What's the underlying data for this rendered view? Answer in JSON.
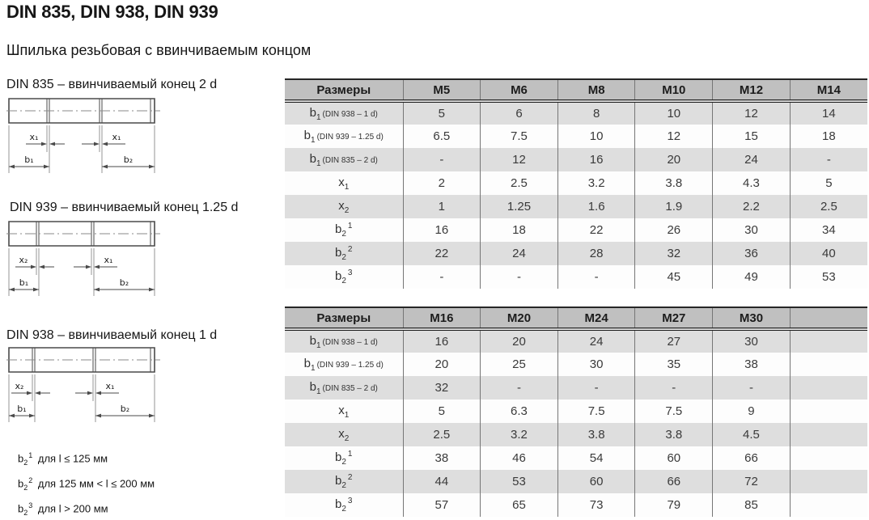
{
  "page": {
    "title": "DIN 835, DIN 938, DIN 939",
    "subtitle": "Шпилька резьбовая с ввинчиваемым концом"
  },
  "colors": {
    "table_header_bg": "#c0c0c0",
    "row_shaded_bg": "#dedede",
    "border_dark": "#262626",
    "grid_line": "#767676",
    "drawing_line": "#4a4a4a"
  },
  "drawings": [
    {
      "title": "DIN 835 – ввинчиваемый конец 2 d",
      "labels": {
        "x_left": "x₁",
        "x_right": "x₁",
        "b_left": "b₁",
        "b_right": "b₂"
      }
    },
    {
      "title": "DIN 939 – ввинчиваемый конец 1.25 d",
      "labels": {
        "x_left": "x₂",
        "x_right": "x₁",
        "b_left": "b₁",
        "b_right": "b₂"
      }
    },
    {
      "title": "DIN 938 – ввинчиваемый конец 1 d",
      "labels": {
        "x_left": "x₂",
        "x_right": "x₁",
        "b_left": "b₁",
        "b_right": "b₂"
      }
    }
  ],
  "footnotes": [
    {
      "base": "b",
      "sub": "2",
      "sup": "1",
      "text": "для l ≤ 125 мм"
    },
    {
      "base": "b",
      "sub": "2",
      "sup": "2",
      "text": "для 125 мм < l ≤ 200 мм"
    },
    {
      "base": "b",
      "sub": "2",
      "sup": "3",
      "text": "для l > 200 мм"
    }
  ],
  "tables": [
    {
      "header": [
        "Размеры",
        "M5",
        "M6",
        "M8",
        "M10",
        "M12",
        "M14"
      ],
      "rows": [
        {
          "label": {
            "base": "b",
            "sub": "1",
            "note": "(DIN 938 – 1 d)"
          },
          "values": [
            "5",
            "6",
            "8",
            "10",
            "12",
            "14"
          ]
        },
        {
          "label": {
            "base": "b",
            "sub": "1",
            "note": "(DIN 939 – 1.25 d)"
          },
          "values": [
            "6.5",
            "7.5",
            "10",
            "12",
            "15",
            "18"
          ]
        },
        {
          "label": {
            "base": "b",
            "sub": "1",
            "note": "(DIN 835 – 2 d)"
          },
          "values": [
            "-",
            "12",
            "16",
            "20",
            "24",
            "-"
          ]
        },
        {
          "label": {
            "base": "x",
            "sub": "1"
          },
          "values": [
            "2",
            "2.5",
            "3.2",
            "3.8",
            "4.3",
            "5"
          ]
        },
        {
          "label": {
            "base": "x",
            "sub": "2"
          },
          "values": [
            "1",
            "1.25",
            "1.6",
            "1.9",
            "2.2",
            "2.5"
          ]
        },
        {
          "label": {
            "base": "b",
            "sub": "2",
            "sup": "1"
          },
          "values": [
            "16",
            "18",
            "22",
            "26",
            "30",
            "34"
          ]
        },
        {
          "label": {
            "base": "b",
            "sub": "2",
            "sup": "2"
          },
          "values": [
            "22",
            "24",
            "28",
            "32",
            "36",
            "40"
          ]
        },
        {
          "label": {
            "base": "b",
            "sub": "2",
            "sup": "3"
          },
          "values": [
            "-",
            "-",
            "-",
            "45",
            "49",
            "53"
          ]
        }
      ]
    },
    {
      "header": [
        "Размеры",
        "M16",
        "M20",
        "M24",
        "M27",
        "M30",
        ""
      ],
      "rows": [
        {
          "label": {
            "base": "b",
            "sub": "1",
            "note": "(DIN 938 – 1 d)"
          },
          "values": [
            "16",
            "20",
            "24",
            "27",
            "30",
            ""
          ]
        },
        {
          "label": {
            "base": "b",
            "sub": "1",
            "note": "(DIN 939 – 1.25 d)"
          },
          "values": [
            "20",
            "25",
            "30",
            "35",
            "38",
            ""
          ]
        },
        {
          "label": {
            "base": "b",
            "sub": "1",
            "note": "(DIN 835 – 2 d)"
          },
          "values": [
            "32",
            "-",
            "-",
            "-",
            "-",
            ""
          ]
        },
        {
          "label": {
            "base": "x",
            "sub": "1"
          },
          "values": [
            "5",
            "6.3",
            "7.5",
            "7.5",
            "9",
            ""
          ]
        },
        {
          "label": {
            "base": "x",
            "sub": "2"
          },
          "values": [
            "2.5",
            "3.2",
            "3.8",
            "3.8",
            "4.5",
            ""
          ]
        },
        {
          "label": {
            "base": "b",
            "sub": "2",
            "sup": "1"
          },
          "values": [
            "38",
            "46",
            "54",
            "60",
            "66",
            ""
          ]
        },
        {
          "label": {
            "base": "b",
            "sub": "2",
            "sup": "2"
          },
          "values": [
            "44",
            "53",
            "60",
            "66",
            "72",
            ""
          ]
        },
        {
          "label": {
            "base": "b",
            "sub": "2",
            "sup": "3"
          },
          "values": [
            "57",
            "65",
            "73",
            "79",
            "85",
            ""
          ]
        }
      ]
    }
  ]
}
